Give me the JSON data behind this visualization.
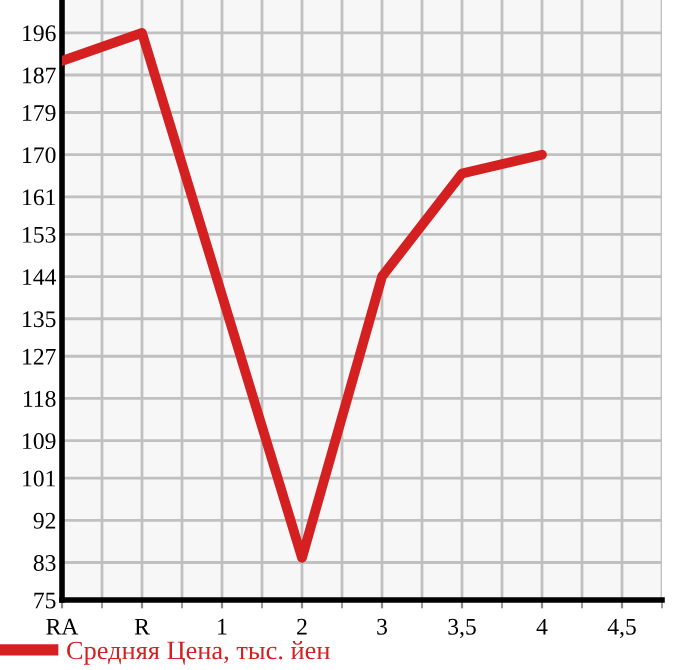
{
  "chart_data": {
    "type": "line",
    "categories": [
      "RA",
      "R",
      "1",
      "2",
      "3",
      "3,5",
      "4",
      "4,5"
    ],
    "series": [
      {
        "name": "Средняя Цена, тыс. йен",
        "color": "#d42020",
        "values": [
          190,
          196,
          null,
          84,
          144,
          166,
          170,
          null
        ]
      }
    ],
    "ylim": [
      75,
      203
    ],
    "yticks": [
      75,
      83,
      92,
      101,
      109,
      118,
      127,
      135,
      144,
      153,
      161,
      170,
      179,
      187,
      196
    ],
    "grid": true,
    "legend": "bottom left",
    "marker": "none",
    "line_style": "solid"
  }
}
